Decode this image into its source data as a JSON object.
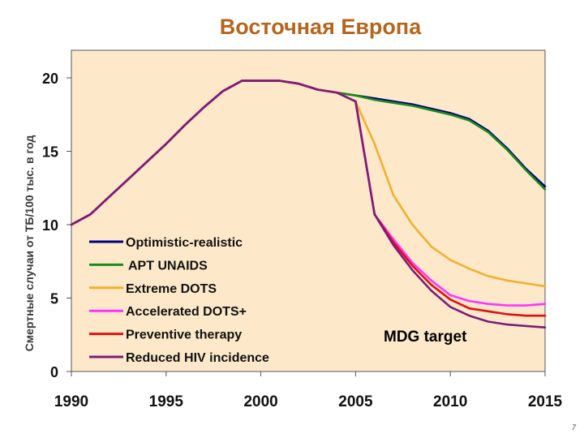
{
  "page_number": "7",
  "chart_data": {
    "type": "line",
    "title": "Восточная Европа",
    "xlabel": "",
    "ylabel": "Смертные случаи от ТБ/100 тыс. в год",
    "xlim": [
      1990,
      2015
    ],
    "ylim": [
      0,
      22
    ],
    "xticks": [
      "1990",
      "1995",
      "2000",
      "2005",
      "2010",
      "2015"
    ],
    "yticks": [
      "0",
      "5",
      "10",
      "15",
      "20"
    ],
    "grid": false,
    "legend_position": "lower-left",
    "annotation": "MDG target",
    "colors": {
      "background": "#fde9c9",
      "title": "#b5651d"
    },
    "series": [
      {
        "name": "Optimistic-realistic",
        "color": "#000080",
        "x": [
          1990,
          1991,
          1992,
          1993,
          1994,
          1995,
          1996,
          1997,
          1998,
          1999,
          2000,
          2001,
          2002,
          2003,
          2004,
          2005,
          2006,
          2007,
          2008,
          2009,
          2010,
          2011,
          2012,
          2013,
          2014,
          2015
        ],
        "values": [
          10.0,
          10.7,
          11.9,
          13.1,
          14.3,
          15.5,
          16.8,
          18.0,
          19.1,
          19.8,
          19.8,
          19.8,
          19.6,
          19.2,
          19.0,
          18.8,
          18.6,
          18.4,
          18.2,
          17.9,
          17.6,
          17.2,
          16.4,
          15.2,
          13.8,
          12.6
        ]
      },
      {
        "name": "APT UNAIDS",
        "color": "#1a8c1a",
        "x": [
          1990,
          1991,
          1992,
          1993,
          1994,
          1995,
          1996,
          1997,
          1998,
          1999,
          2000,
          2001,
          2002,
          2003,
          2004,
          2005,
          2006,
          2007,
          2008,
          2009,
          2010,
          2011,
          2012,
          2013,
          2014,
          2015
        ],
        "values": [
          10.0,
          10.7,
          11.9,
          13.1,
          14.3,
          15.5,
          16.8,
          18.0,
          19.1,
          19.8,
          19.8,
          19.8,
          19.6,
          19.2,
          19.0,
          18.8,
          18.5,
          18.3,
          18.1,
          17.8,
          17.5,
          17.1,
          16.3,
          15.1,
          13.7,
          12.4
        ]
      },
      {
        "name": "Extreme DOTS",
        "color": "#f0b030",
        "x": [
          1990,
          1991,
          1992,
          1993,
          1994,
          1995,
          1996,
          1997,
          1998,
          1999,
          2000,
          2001,
          2002,
          2003,
          2004,
          2005,
          2006,
          2007,
          2008,
          2009,
          2010,
          2011,
          2012,
          2013,
          2014,
          2015
        ],
        "values": [
          10.0,
          10.7,
          11.9,
          13.1,
          14.3,
          15.5,
          16.8,
          18.0,
          19.1,
          19.8,
          19.8,
          19.8,
          19.6,
          19.2,
          19.0,
          18.4,
          15.5,
          12.0,
          10.0,
          8.5,
          7.6,
          7.0,
          6.5,
          6.2,
          6.0,
          5.8
        ]
      },
      {
        "name": "Accelerated DOTS+",
        "color": "#ff33ff",
        "x": [
          1990,
          1991,
          1992,
          1993,
          1994,
          1995,
          1996,
          1997,
          1998,
          1999,
          2000,
          2001,
          2002,
          2003,
          2004,
          2005,
          2006,
          2007,
          2008,
          2009,
          2010,
          2011,
          2012,
          2013,
          2014,
          2015
        ],
        "values": [
          10.0,
          10.7,
          11.9,
          13.1,
          14.3,
          15.5,
          16.8,
          18.0,
          19.1,
          19.8,
          19.8,
          19.8,
          19.6,
          19.2,
          19.0,
          18.4,
          10.7,
          9.0,
          7.4,
          6.2,
          5.2,
          4.8,
          4.6,
          4.5,
          4.5,
          4.6
        ]
      },
      {
        "name": "Preventive therapy",
        "color": "#e01010",
        "x": [
          1990,
          1991,
          1992,
          1993,
          1994,
          1995,
          1996,
          1997,
          1998,
          1999,
          2000,
          2001,
          2002,
          2003,
          2004,
          2005,
          2006,
          2007,
          2008,
          2009,
          2010,
          2011,
          2012,
          2013,
          2014,
          2015
        ],
        "values": [
          10.0,
          10.7,
          11.9,
          13.1,
          14.3,
          15.5,
          16.8,
          18.0,
          19.1,
          19.8,
          19.8,
          19.8,
          19.6,
          19.2,
          19.0,
          18.4,
          10.7,
          8.8,
          7.2,
          5.9,
          4.9,
          4.3,
          4.1,
          3.9,
          3.8,
          3.8
        ]
      },
      {
        "name": "Reduced HIV incidence",
        "color": "#7b1c7b",
        "x": [
          1990,
          1991,
          1992,
          1993,
          1994,
          1995,
          1996,
          1997,
          1998,
          1999,
          2000,
          2001,
          2002,
          2003,
          2004,
          2005,
          2006,
          2007,
          2008,
          2009,
          2010,
          2011,
          2012,
          2013,
          2014,
          2015
        ],
        "values": [
          10.0,
          10.7,
          11.9,
          13.1,
          14.3,
          15.5,
          16.8,
          18.0,
          19.1,
          19.8,
          19.8,
          19.8,
          19.6,
          19.2,
          19.0,
          18.4,
          10.7,
          8.6,
          6.9,
          5.5,
          4.4,
          3.8,
          3.4,
          3.2,
          3.1,
          3.0
        ]
      }
    ]
  }
}
